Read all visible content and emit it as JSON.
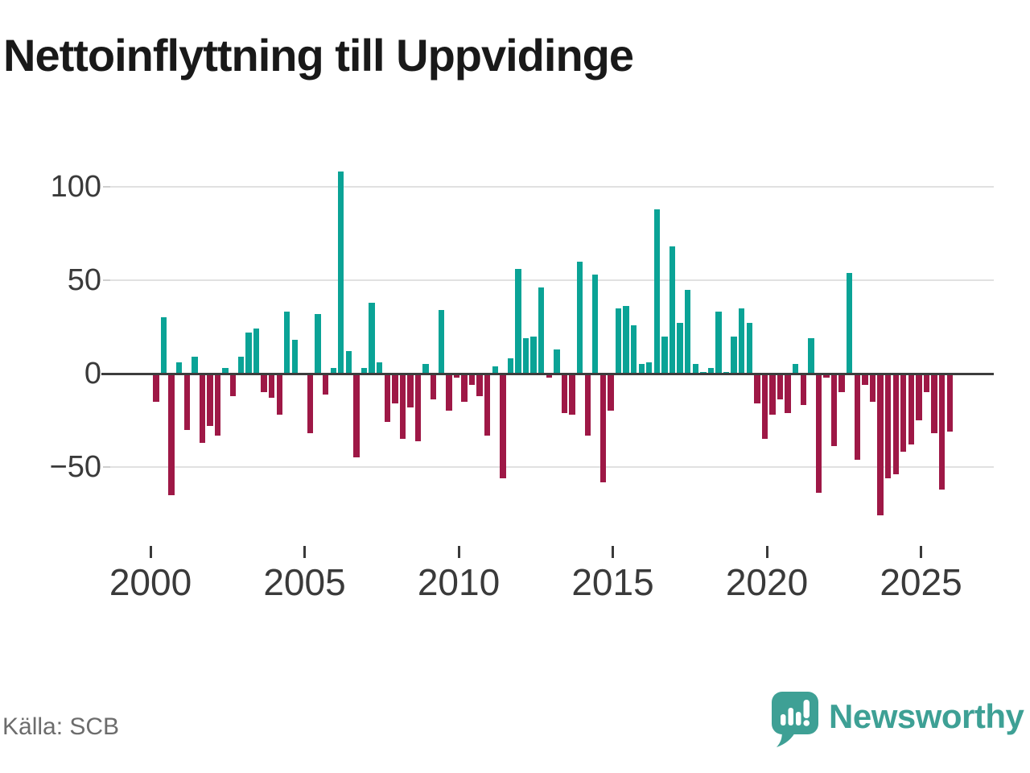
{
  "title": "Nettoinflyttning till Uppvidinge",
  "source": "Källa: SCB",
  "branding": {
    "name": "Newsworthy",
    "icon": "bar-chart-speech-bubble-icon"
  },
  "colors": {
    "positive_bar": "#0aa396",
    "negative_bar": "#9e1846",
    "gridline": "#e1e1e1",
    "zero_line": "#3d3d3d",
    "axis_text": "#3a3a3a",
    "title_text": "#191919",
    "source_text": "#6c6c6c",
    "brand_teal": "#3ea095"
  },
  "chart_data": {
    "type": "bar",
    "title": "Nettoinflyttning till Uppvidinge",
    "xlabel": "",
    "ylabel": "",
    "frequency": "quarterly",
    "start_period": "2000 Q1",
    "end_period": "2025 Q4",
    "grid": "horizontal",
    "legend": "none",
    "ylim": [
      -85,
      115
    ],
    "y_ticks": [
      {
        "value": 100,
        "label": "100"
      },
      {
        "value": 50,
        "label": "50"
      },
      {
        "value": 0,
        "label": "0"
      },
      {
        "value": -50,
        "label": "−50"
      }
    ],
    "x_ticks": [
      {
        "year": 2000,
        "label": "2000"
      },
      {
        "year": 2005,
        "label": "2005"
      },
      {
        "year": 2010,
        "label": "2010"
      },
      {
        "year": 2015,
        "label": "2015"
      },
      {
        "year": 2020,
        "label": "2020"
      },
      {
        "year": 2025,
        "label": "2025"
      }
    ],
    "values": [
      -15,
      30,
      -65,
      6,
      -30,
      9,
      -37,
      -28,
      -33,
      3,
      -12,
      9,
      22,
      24,
      -10,
      -13,
      -22,
      33,
      18,
      0,
      -32,
      32,
      -11,
      3,
      108,
      12,
      -45,
      3,
      38,
      6,
      -26,
      -16,
      -35,
      -18,
      -36,
      5,
      -14,
      34,
      -20,
      -2,
      -15,
      -6,
      -12,
      -33,
      4,
      -56,
      8,
      56,
      19,
      20,
      46,
      -2,
      13,
      -21,
      -22,
      60,
      -33,
      53,
      -58,
      -20,
      35,
      36,
      26,
      5,
      6,
      88,
      20,
      68,
      27,
      45,
      5,
      1,
      3,
      33,
      1,
      20,
      35,
      27,
      -16,
      -35,
      -22,
      -14,
      -21,
      5,
      -17,
      19,
      -64,
      -2,
      -39,
      -10,
      54,
      -46,
      -6,
      -15,
      -76,
      -56,
      -54,
      -42,
      -38,
      -25,
      -10,
      -32,
      -62,
      -31
    ]
  }
}
